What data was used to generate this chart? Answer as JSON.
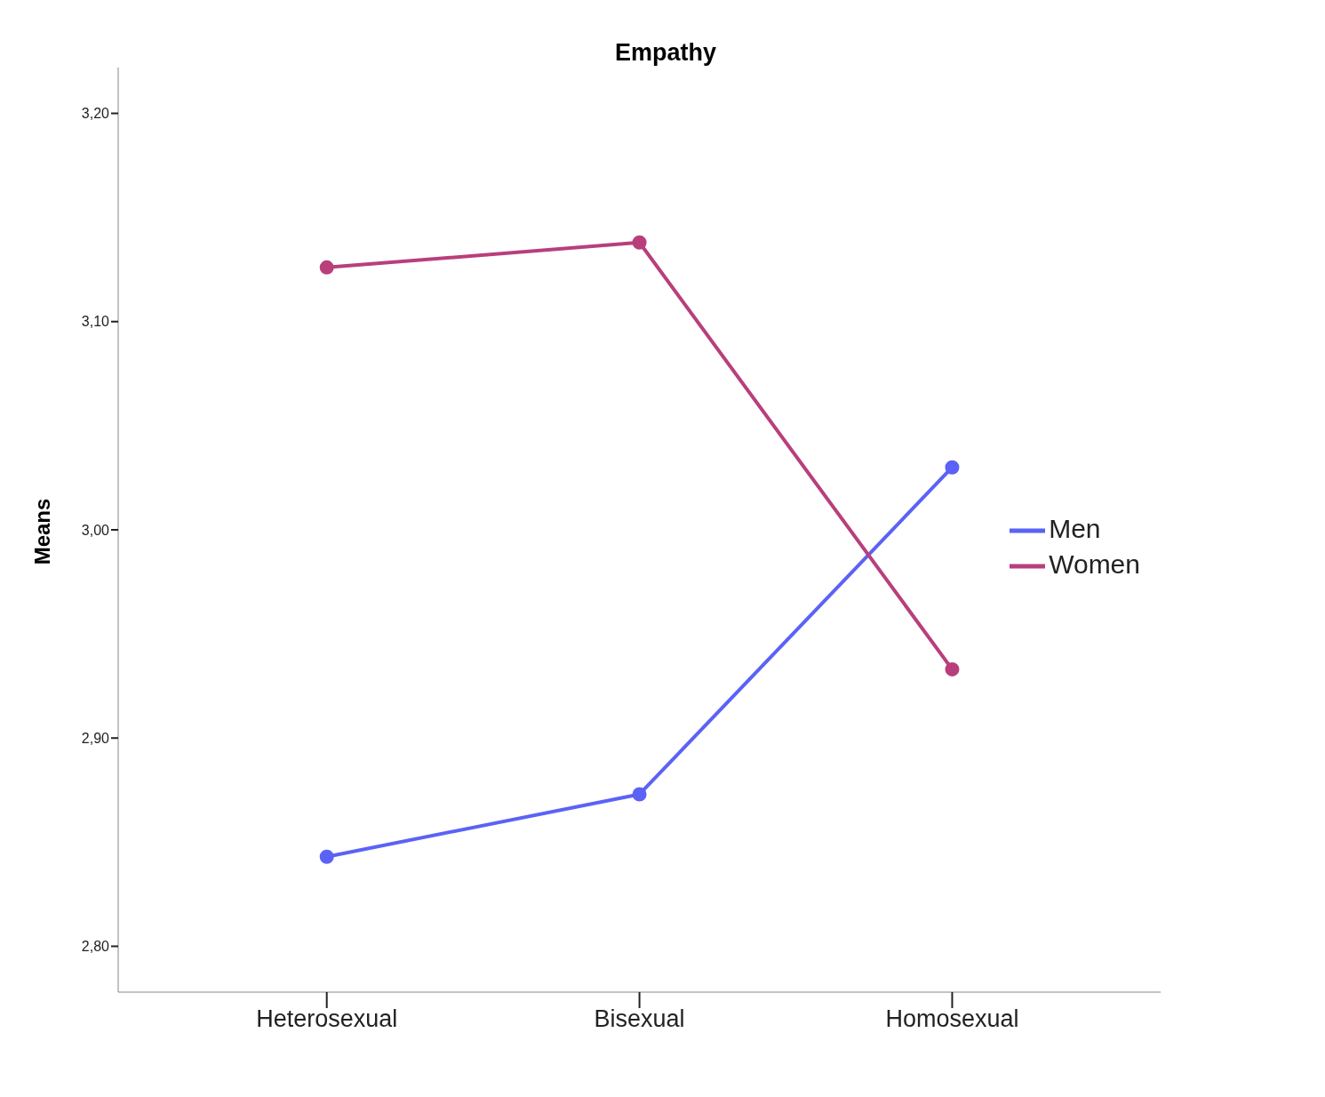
{
  "chart_data": {
    "type": "line",
    "title": "Empathy",
    "ylabel": "Means",
    "categories": [
      "Heterosexual",
      "Bisexual",
      "Homosexual"
    ],
    "series": [
      {
        "name": "Men",
        "color": "#5b62f6",
        "values": [
          2.843,
          2.873,
          3.03
        ]
      },
      {
        "name": "Women",
        "color": "#b83f7c",
        "values": [
          3.126,
          3.138,
          2.933
        ]
      }
    ],
    "ylim": [
      2.778,
      3.222
    ],
    "yticks": [
      {
        "value": 2.8,
        "label": "2,80"
      },
      {
        "value": 2.9,
        "label": "2,90"
      },
      {
        "value": 3.0,
        "label": "3,00"
      },
      {
        "value": 3.1,
        "label": "3,10"
      },
      {
        "value": 3.2,
        "label": "3,20"
      }
    ],
    "grid": false,
    "legend": "right",
    "marker": "circle",
    "line_style": "solid"
  }
}
